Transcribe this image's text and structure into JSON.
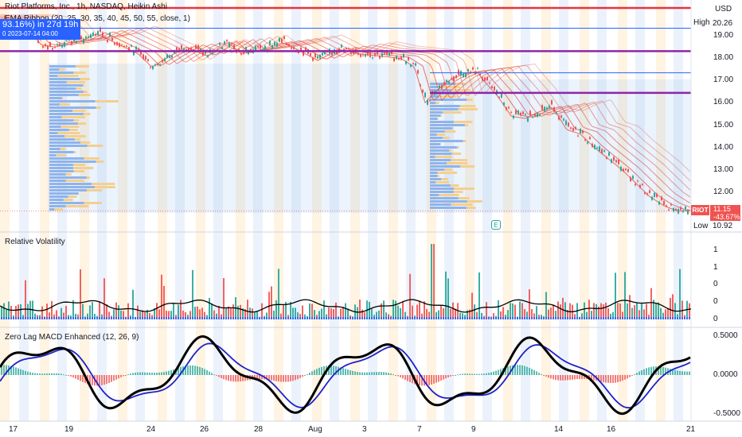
{
  "header": {
    "symbol_line": "Riot Platforms, Inc., 1h, NASDAQ, Heikin Ashi",
    "indicator_line": "EMA Ribbon (20, 25, 30, 35, 40, 45, 50, 55, close, 1)",
    "badge_line1": "93.16%) in 27d 19h",
    "badge_line2": "0 2023-07-14  04:00",
    "currency": "USD"
  },
  "price_axis": {
    "high_label": "High",
    "high_value": "20.26",
    "low_label": "Low",
    "low_value": "10.92",
    "ticker": "RIOT",
    "last_price": "11.15",
    "last_change": "-43.67%",
    "ticks": [
      "19.00",
      "18.00",
      "17.00",
      "16.00",
      "15.00",
      "14.00",
      "13.00",
      "12.00"
    ],
    "earnings_icon": "E"
  },
  "panes": {
    "volatility_title": "Relative Volatility",
    "volatility_ticks": [
      "1",
      "1",
      "0",
      "0",
      "0"
    ],
    "macd_title": "Zero Lag MACD Enhanced (12, 26, 9)",
    "macd_ticks": [
      "0.5000",
      "0.0000",
      "-0.5000"
    ]
  },
  "time_axis": [
    "17",
    "19",
    "24",
    "26",
    "28",
    "Aug",
    "3",
    "7",
    "9",
    "14",
    "16",
    "21"
  ],
  "colors": {
    "up": "#26a69a",
    "down": "#ef5350",
    "ribbon": "#e05545",
    "macd_fast": "#000000",
    "macd_slow": "#1e22c8",
    "red_level": "#e8333d",
    "purple_level": "#8e24aa",
    "blue_level": "#2962ff",
    "vp_up": "#8fb4ea",
    "vp_down": "#f4cf8f"
  },
  "chart_data": [
    {
      "type": "line",
      "name": "price",
      "y_unit": "USD",
      "ylim": [
        10.92,
        20.26
      ],
      "horizontal_levels": [
        {
          "value": 20.26,
          "color": "red"
        },
        {
          "value": 19.35,
          "color": "blue"
        },
        {
          "value": 18.32,
          "color": "purple"
        },
        {
          "value": 17.35,
          "color": "blue"
        },
        {
          "value": 16.45,
          "color": "purple"
        }
      ],
      "price_path": [
        [
          0,
          19.6
        ],
        [
          0.04,
          19.3
        ],
        [
          0.06,
          18.6
        ],
        [
          0.08,
          18.5
        ],
        [
          0.1,
          18.7
        ],
        [
          0.12,
          18.8
        ],
        [
          0.14,
          19.1
        ],
        [
          0.16,
          18.8
        ],
        [
          0.2,
          18.2
        ],
        [
          0.22,
          17.6
        ],
        [
          0.24,
          18.0
        ],
        [
          0.27,
          18.5
        ],
        [
          0.3,
          18.1
        ],
        [
          0.33,
          18.7
        ],
        [
          0.35,
          18.2
        ],
        [
          0.38,
          18.4
        ],
        [
          0.41,
          18.7
        ],
        [
          0.43,
          18.4
        ],
        [
          0.46,
          17.9
        ],
        [
          0.49,
          18.4
        ],
        [
          0.52,
          18.2
        ],
        [
          0.55,
          18.1
        ],
        [
          0.58,
          18.0
        ],
        [
          0.6,
          17.6
        ],
        [
          0.615,
          16.0
        ],
        [
          0.63,
          16.5
        ],
        [
          0.65,
          17.0
        ],
        [
          0.67,
          17.3
        ],
        [
          0.69,
          17.4
        ],
        [
          0.7,
          17.0
        ],
        [
          0.72,
          16.3
        ],
        [
          0.74,
          15.4
        ],
        [
          0.76,
          15.3
        ],
        [
          0.78,
          15.6
        ],
        [
          0.8,
          15.8
        ],
        [
          0.82,
          14.8
        ],
        [
          0.84,
          14.6
        ],
        [
          0.86,
          14.0
        ],
        [
          0.88,
          13.5
        ],
        [
          0.9,
          13.0
        ],
        [
          0.92,
          12.4
        ],
        [
          0.94,
          11.8
        ],
        [
          0.96,
          11.4
        ],
        [
          0.98,
          11.15
        ],
        [
          1.0,
          11.15
        ]
      ]
    },
    {
      "type": "bar",
      "name": "Relative Volatility",
      "note": "histogram with moving-average line"
    },
    {
      "type": "line",
      "name": "Zero Lag MACD Enhanced (12, 26, 9)",
      "ylim": [
        -0.55,
        0.55
      ],
      "ticks": [
        0.5,
        0.0,
        -0.5
      ]
    }
  ]
}
